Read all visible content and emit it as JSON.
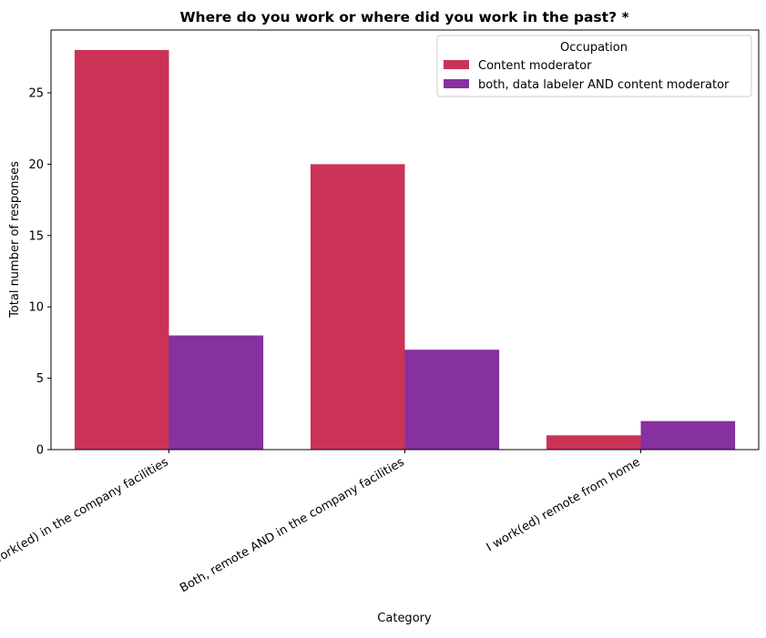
{
  "chart_data": {
    "type": "bar",
    "title": "Where do you work or where did you work in the past? *",
    "xlabel": "Category",
    "ylabel": "Total number of responses",
    "categories": [
      "I work(ed) in the company facilities",
      "Both, remote AND in the company facilities",
      "I work(ed) remote from home"
    ],
    "series": [
      {
        "name": "Content moderator",
        "color": "#cb3356",
        "values": [
          28,
          20,
          1
        ]
      },
      {
        "name": "both, data labeler AND content moderator",
        "color": "#8730a0",
        "values": [
          8,
          7,
          2
        ]
      }
    ],
    "ylim": [
      0,
      29.4
    ],
    "yticks": [
      0,
      5,
      10,
      15,
      20,
      25
    ],
    "grid": false,
    "legend": {
      "title": "Occupation",
      "placement": "top-right"
    },
    "xtick_rotation": 30
  }
}
